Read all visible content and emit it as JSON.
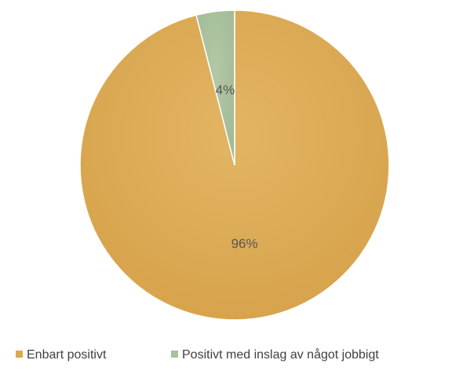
{
  "chart_data": {
    "type": "pie",
    "start_angle_deg": 0,
    "direction": "clockwise",
    "legend_position": "bottom",
    "slices": [
      {
        "label": "Enbart positivt",
        "value": 96,
        "display": "96%",
        "color": "#DDA94F"
      },
      {
        "label": "Positivt med inslag av något jobbigt",
        "value": 4,
        "display": "4%",
        "color": "#A9C09C"
      }
    ]
  }
}
